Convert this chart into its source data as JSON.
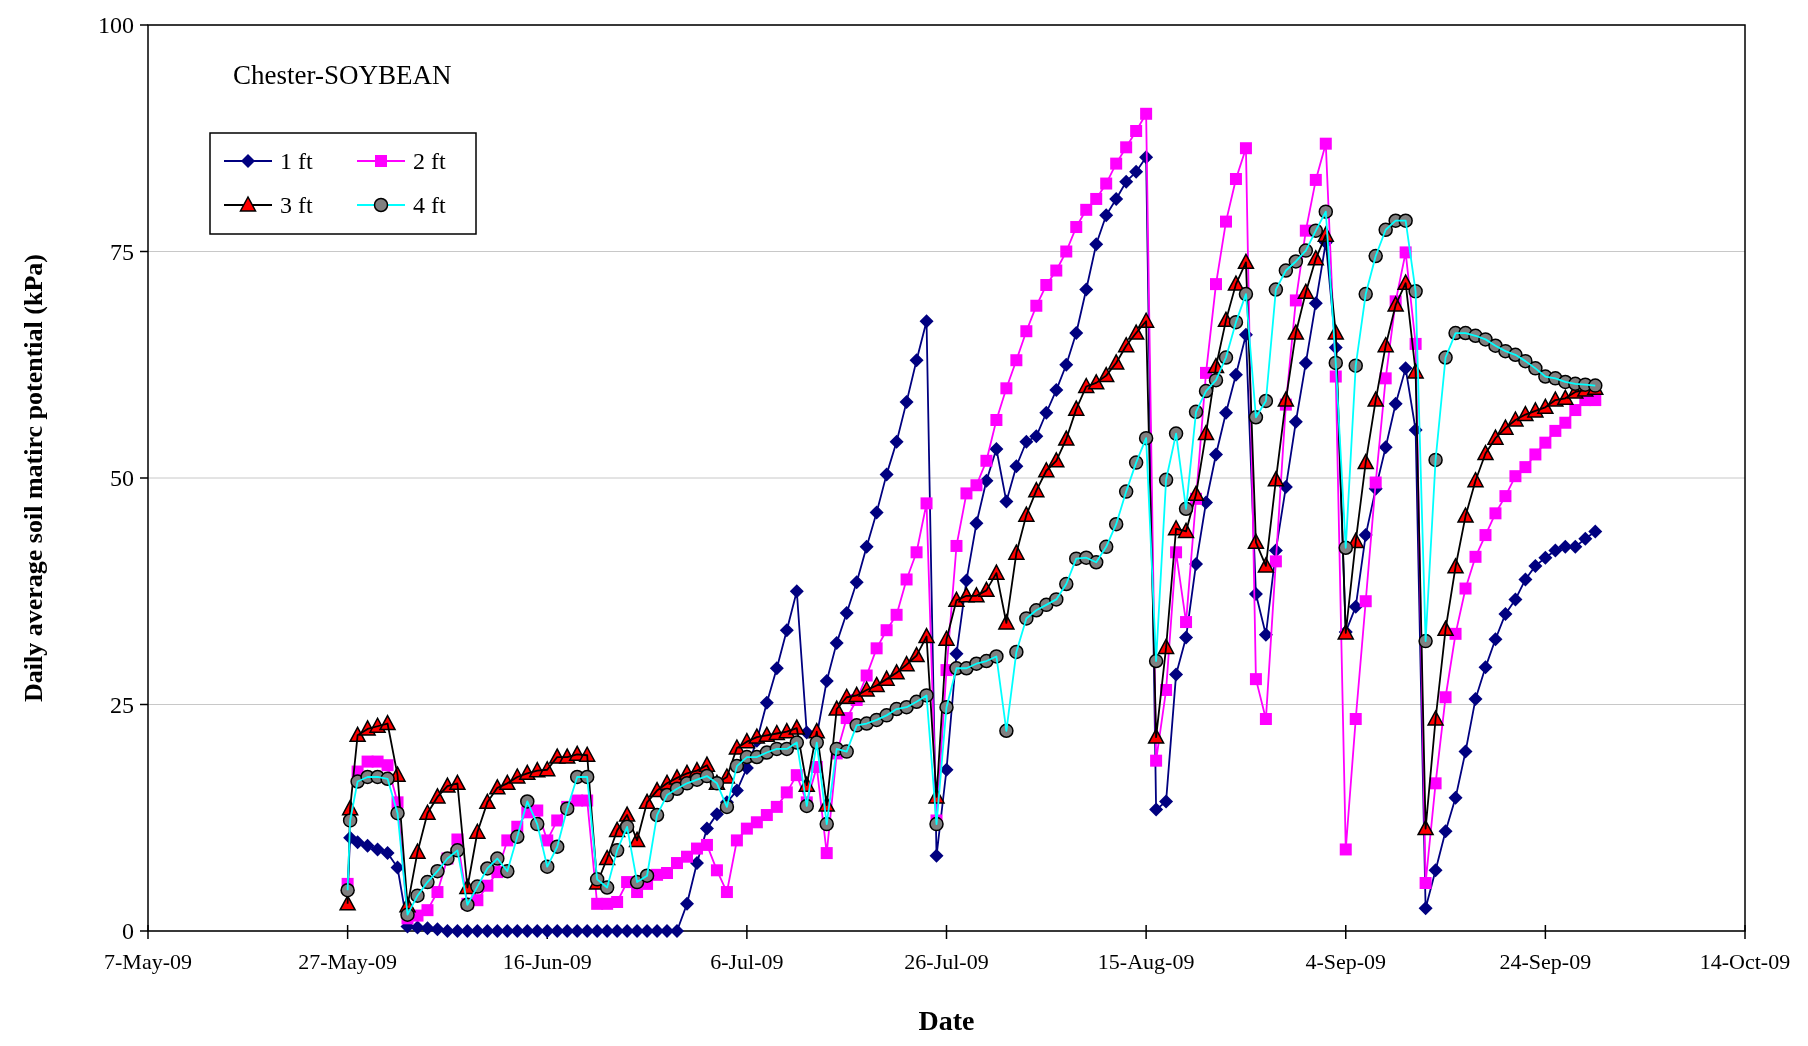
{
  "chart_data": {
    "type": "line",
    "xlabel": "Date",
    "ylabel": "Daily average soil matirc potential (kPa)",
    "annotations": [
      "Chester-SOYBEAN"
    ],
    "x": [
      "2009-05-27T00:00",
      "2009-05-27T06:00",
      "2009-05-28",
      "2009-05-29",
      "2009-05-30",
      "2009-05-31",
      "2009-06-01",
      "2009-06-02",
      "2009-06-03",
      "2009-06-04",
      "2009-06-05",
      "2009-06-06",
      "2009-06-07",
      "2009-06-08",
      "2009-06-09",
      "2009-06-10",
      "2009-06-11",
      "2009-06-12",
      "2009-06-13",
      "2009-06-14",
      "2009-06-15",
      "2009-06-16",
      "2009-06-17",
      "2009-06-18",
      "2009-06-19",
      "2009-06-20",
      "2009-06-21",
      "2009-06-22",
      "2009-06-23",
      "2009-06-24",
      "2009-06-25",
      "2009-06-26",
      "2009-06-27",
      "2009-06-28",
      "2009-06-29",
      "2009-06-30",
      "2009-07-01",
      "2009-07-02",
      "2009-07-03",
      "2009-07-04",
      "2009-07-05",
      "2009-07-06",
      "2009-07-07",
      "2009-07-08",
      "2009-07-09",
      "2009-07-10",
      "2009-07-11",
      "2009-07-12",
      "2009-07-13",
      "2009-07-14",
      "2009-07-15",
      "2009-07-16",
      "2009-07-17",
      "2009-07-18",
      "2009-07-19",
      "2009-07-20",
      "2009-07-21",
      "2009-07-22",
      "2009-07-23",
      "2009-07-24",
      "2009-07-25",
      "2009-07-26",
      "2009-07-27",
      "2009-07-28",
      "2009-07-29",
      "2009-07-30",
      "2009-07-31",
      "2009-08-01",
      "2009-08-02",
      "2009-08-03",
      "2009-08-04",
      "2009-08-05",
      "2009-08-06",
      "2009-08-07",
      "2009-08-08",
      "2009-08-09",
      "2009-08-10",
      "2009-08-11",
      "2009-08-12",
      "2009-08-13",
      "2009-08-14",
      "2009-08-15",
      "2009-08-16",
      "2009-08-17",
      "2009-08-18",
      "2009-08-19",
      "2009-08-20",
      "2009-08-21",
      "2009-08-22",
      "2009-08-23",
      "2009-08-24",
      "2009-08-25",
      "2009-08-26",
      "2009-08-27",
      "2009-08-28",
      "2009-08-29",
      "2009-08-30",
      "2009-08-31",
      "2009-09-01",
      "2009-09-02",
      "2009-09-03",
      "2009-09-04",
      "2009-09-05",
      "2009-09-06",
      "2009-09-07",
      "2009-09-08",
      "2009-09-09",
      "2009-09-10",
      "2009-09-11",
      "2009-09-12",
      "2009-09-13",
      "2009-09-14",
      "2009-09-15",
      "2009-09-16",
      "2009-09-17",
      "2009-09-18",
      "2009-09-19",
      "2009-09-20",
      "2009-09-21",
      "2009-09-22",
      "2009-09-23",
      "2009-09-24",
      "2009-09-25",
      "2009-09-26",
      "2009-09-27",
      "2009-09-28",
      "2009-09-29"
    ],
    "series": [
      {
        "name": "1 ft",
        "color": "#000080",
        "marker": "diamond",
        "values": [
          4.5,
          10.3,
          9.8,
          9.4,
          9.0,
          8.6,
          7.0,
          0.5,
          0.4,
          0.3,
          0.2,
          0,
          0,
          0,
          0,
          0,
          0,
          0,
          0,
          0,
          0,
          0,
          0,
          0,
          0,
          0,
          0,
          0,
          0,
          0,
          0,
          0,
          0,
          0,
          0,
          3.0,
          7.5,
          11.3,
          12.9,
          14.2,
          15.5,
          18.0,
          21.0,
          25.2,
          29.0,
          33.2,
          37.5,
          21.9,
          21.5,
          27.6,
          31.8,
          35.1,
          38.5,
          42.4,
          46.2,
          50.4,
          54.0,
          58.4,
          63.0,
          67.3,
          8.3,
          17.8,
          30.6,
          38.7,
          45.0,
          49.7,
          53.2,
          47.4,
          51.3,
          54.0,
          54.6,
          57.2,
          59.7,
          62.5,
          66.0,
          70.8,
          75.8,
          79.0,
          80.8,
          82.7,
          83.8,
          85.4,
          13.4,
          14.3,
          28.3,
          32.4,
          40.5,
          47.3,
          52.6,
          57.2,
          61.4,
          65.8,
          37.2,
          32.7,
          42.0,
          49.0,
          56.2,
          62.7,
          69.3,
          76.0,
          64.4,
          33.0,
          35.8,
          43.7,
          48.8,
          53.4,
          58.2,
          62.1,
          55.3,
          2.5,
          6.7,
          11.0,
          14.7,
          19.8,
          25.6,
          29.1,
          32.2,
          35.0,
          36.6,
          38.8,
          40.3,
          41.2,
          42.0,
          42.4,
          42.4,
          43.3,
          44.1
        ]
      },
      {
        "name": "2 ft",
        "color": "#ff00ff",
        "marker": "square",
        "values": [
          5.2,
          null,
          17.6,
          18.7,
          18.7,
          18.3,
          14.2,
          1.4,
          1.7,
          2.3,
          4.3,
          8.0,
          10.1,
          3.0,
          3.4,
          5.0,
          6.5,
          10.0,
          11.5,
          13.1,
          13.3,
          10.0,
          12.2,
          13.7,
          14.4,
          14.4,
          3.0,
          3.0,
          3.2,
          5.4,
          4.3,
          5.2,
          6.2,
          6.4,
          7.5,
          8.2,
          9.1,
          9.5,
          6.7,
          4.3,
          10.0,
          11.3,
          12.0,
          12.8,
          13.7,
          15.3,
          17.2,
          14.2,
          18.1,
          8.6,
          19.6,
          23.5,
          25.5,
          28.2,
          31.2,
          33.2,
          34.9,
          38.8,
          41.8,
          47.2,
          12.2,
          28.8,
          42.5,
          48.3,
          49.2,
          51.9,
          56.4,
          59.9,
          63.0,
          66.2,
          69.0,
          71.3,
          72.9,
          75.0,
          77.7,
          79.6,
          80.8,
          82.5,
          84.7,
          86.5,
          88.3,
          90.2,
          18.8,
          26.6,
          41.8,
          34.1,
          47.7,
          61.6,
          71.4,
          78.3,
          83.0,
          86.4,
          27.8,
          23.4,
          40.8,
          58.1,
          69.6,
          77.3,
          82.9,
          86.9,
          61.2,
          9.0,
          23.4,
          36.4,
          49.5,
          61.0,
          69.5,
          74.9,
          64.8,
          5.3,
          16.3,
          25.8,
          32.8,
          37.8,
          41.3,
          43.7,
          46.1,
          48.0,
          50.2,
          51.2,
          52.6,
          53.9,
          55.2,
          56.1,
          57.5,
          58.6,
          58.6
        ]
      },
      {
        "name": "3 ft",
        "color": "#000000",
        "marker": "triangle",
        "colors": [
          "#ff0000",
          "#ff0000",
          "#ff0000",
          "#ff0000",
          "#ff0000",
          "#ff0000",
          "#ff0000",
          "#ff0000",
          "#ff0000",
          "#ff0000",
          "#ff0000",
          "#ff0000",
          "#ff0000",
          "#ff0000",
          "#ff0000",
          "#ff0000",
          "#ff0000",
          "#ff0000",
          "#ff0000",
          "#ff0000",
          "#ff0000",
          "#ff0000",
          "#ff0000",
          "#ff0000",
          "#ff0000",
          "#ff0000",
          "#ff0000",
          "#ff0000",
          "#ff0000",
          "#ff0000",
          "#ff0000",
          "#ff0000",
          "#ff0000",
          "#ff0000",
          "#ff0000",
          "#ff0000",
          "#ff0000",
          "#ff0000",
          "#ff0000",
          "#ff0000",
          "#ff0000",
          "#ff0000",
          "#ff0000",
          "#ff0000",
          "#ff0000",
          "#ff0000",
          "#ff0000",
          "#ff0000",
          "#ff0000",
          "#ff0000",
          "#ff0000",
          "#ff0000",
          "#ff0000",
          "#ff0000",
          "#ff0000",
          "#ff0000",
          "#ff0000",
          "#ff0000",
          "#ff0000",
          "#ff0000",
          "#ff0000",
          "#ff0000",
          "#ff0000",
          "#ff0000",
          "#ff0000",
          "#ff0000",
          "#ff0000",
          "#ff0000",
          "#ff0000",
          "#ff0000",
          "#ff0000",
          "#ff0000",
          "#ff0000",
          "#ff0000",
          "#ff0000",
          "#ff0000",
          "#ff0000",
          "#ff0000",
          "#ff0000",
          "#ff0000",
          "#ff0000",
          "#ff0000",
          "#ff0000",
          "#ff0000",
          "#ff0000",
          "#ff0000",
          "#ff0000",
          "#ff0000",
          "#ff0000",
          "#ff0000",
          "#ff0000",
          "#ff0000",
          "#ff0000",
          "#ff0000",
          "#ff0000",
          "#ff0000",
          "#ff0000",
          "#ff0000",
          "#ff0000",
          "#ff0000",
          "#ff0000",
          "#ff0000",
          "#ff0000",
          "#ff0000",
          "#ff0000",
          "#ff0000",
          "#ff0000",
          "#ff0000",
          "#ff0000",
          "#ff0000",
          "#ff0000",
          "#ff0000",
          "#ff0000",
          "#ff0000",
          "#ff0000",
          "#ff0000",
          "#ff0000",
          "#ff0000",
          "#ff0000",
          "#ff0000",
          "#ff0000",
          "#ff0000",
          "#ff0000",
          "#ff0000",
          "#ff0000",
          "#ff0000",
          "#ff0000"
        ],
        "values": [
          3.0,
          13.5,
          21.6,
          22.3,
          22.6,
          22.9,
          17.2,
          2.8,
          8.7,
          13.0,
          14.8,
          16.0,
          16.3,
          4.8,
          10.9,
          14.2,
          15.8,
          16.3,
          17.0,
          17.4,
          17.7,
          17.8,
          19.2,
          19.2,
          19.5,
          19.4,
          5.3,
          8.0,
          11.1,
          12.8,
          10.0,
          14.2,
          15.5,
          16.3,
          16.9,
          17.4,
          17.7,
          18.3,
          16.3,
          17.0,
          20.2,
          20.9,
          21.4,
          21.6,
          21.8,
          22.0,
          22.4,
          16.1,
          22.0,
          13.9,
          24.5,
          25.8,
          26.0,
          26.6,
          27.1,
          27.8,
          28.5,
          29.4,
          30.4,
          32.5,
          14.8,
          32.2,
          36.5,
          37.0,
          37.0,
          37.6,
          39.5,
          34.0,
          41.7,
          45.9,
          48.6,
          50.8,
          51.9,
          54.3,
          57.6,
          60.1,
          60.5,
          61.3,
          62.7,
          64.6,
          66.0,
          67.3,
          21.4,
          31.3,
          44.4,
          44.1,
          48.2,
          54.9,
          62.3,
          67.4,
          71.4,
          73.8,
          42.9,
          40.3,
          49.8,
          58.6,
          66.0,
          70.5,
          74.2,
          76.8,
          66.0,
          32.9,
          43.0,
          51.7,
          58.6,
          64.6,
          69.1,
          71.5,
          61.7,
          11.3,
          23.4,
          33.3,
          40.2,
          45.8,
          49.7,
          52.7,
          54.4,
          55.5,
          56.4,
          57.0,
          57.4,
          57.8,
          58.6,
          58.8,
          59.5,
          59.7,
          59.9
        ]
      },
      {
        "name": "4 ft",
        "color": "#00ffff",
        "marker": "circle",
        "colors": [
          "#808080",
          "#808080",
          "#808080",
          "#808080",
          "#808080",
          "#808080",
          "#808080",
          "#808080",
          "#808080",
          "#808080",
          "#808080",
          "#808080",
          "#808080",
          "#808080",
          "#808080",
          "#808080",
          "#808080",
          "#808080",
          "#808080",
          "#808080",
          "#808080",
          "#808080",
          "#808080",
          "#808080",
          "#808080",
          "#808080",
          "#808080",
          "#808080",
          "#808080",
          "#808080",
          "#808080",
          "#808080",
          "#808080",
          "#808080",
          "#808080",
          "#808080",
          "#808080",
          "#808080",
          "#808080",
          "#808080",
          "#808080",
          "#808080",
          "#808080",
          "#808080",
          "#808080",
          "#808080",
          "#808080",
          "#808080",
          "#808080",
          "#808080",
          "#808080",
          "#808080",
          "#808080",
          "#808080",
          "#808080",
          "#808080",
          "#808080",
          "#808080",
          "#808080",
          "#808080",
          "#808080",
          "#808080",
          "#808080",
          "#808080",
          "#808080",
          "#808080",
          "#808080",
          "#808080",
          "#808080",
          "#808080",
          "#808080",
          "#808080",
          "#808080",
          "#808080",
          "#808080",
          "#808080",
          "#808080",
          "#808080",
          "#808080",
          "#808080",
          "#808080",
          "#808080",
          "#808080",
          "#808080",
          "#808080",
          "#808080",
          "#808080",
          "#808080",
          "#808080",
          "#808080",
          "#808080",
          "#808080",
          "#808080",
          "#808080",
          "#808080",
          "#808080",
          "#808080",
          "#808080",
          "#808080",
          "#808080",
          "#808080",
          "#808080",
          "#808080",
          "#808080",
          "#808080",
          "#808080",
          "#808080",
          "#808080",
          "#808080",
          "#808080",
          "#808080",
          "#808080",
          "#808080",
          "#808080",
          "#808080",
          "#808080",
          "#808080",
          "#808080",
          "#808080",
          "#808080",
          "#808080",
          "#808080",
          "#808080",
          "#808080",
          "#808080",
          "#808080",
          "#808080"
        ],
        "values": [
          4.5,
          12.2,
          16.5,
          17.0,
          17.0,
          16.8,
          13.0,
          1.8,
          3.9,
          5.4,
          6.6,
          8.0,
          8.9,
          2.9,
          4.9,
          6.9,
          8.0,
          6.6,
          10.4,
          14.3,
          11.8,
          7.1,
          9.3,
          13.5,
          17.0,
          17.0,
          5.7,
          4.8,
          8.9,
          11.5,
          5.4,
          6.1,
          12.8,
          15.0,
          15.7,
          16.3,
          16.7,
          17.1,
          16.3,
          13.7,
          18.2,
          19.2,
          19.2,
          19.7,
          20.1,
          20.1,
          20.8,
          13.8,
          20.8,
          11.8,
          20.1,
          19.8,
          22.7,
          22.9,
          23.3,
          23.8,
          24.5,
          24.7,
          25.3,
          26.0,
          11.8,
          24.7,
          29.0,
          29.0,
          29.5,
          29.8,
          30.3,
          22.1,
          30.8,
          34.5,
          35.4,
          36.0,
          36.6,
          38.3,
          41.1,
          41.2,
          40.7,
          42.4,
          44.9,
          48.5,
          51.7,
          54.4,
          29.8,
          49.8,
          54.9,
          46.6,
          57.3,
          59.6,
          60.8,
          63.3,
          67.2,
          70.3,
          56.7,
          58.5,
          70.8,
          72.9,
          73.9,
          75.1,
          77.3,
          79.4,
          62.7,
          42.3,
          62.4,
          70.3,
          74.5,
          77.4,
          78.4,
          78.4,
          70.6,
          32.0,
          52.0,
          63.3,
          66.0,
          66.0,
          65.7,
          65.3,
          64.6,
          64.0,
          63.6,
          62.9,
          62.1,
          61.2,
          61.0,
          60.6,
          60.4,
          60.3,
          60.2
        ]
      }
    ],
    "xlim": [
      "2009-05-07",
      "2009-10-14"
    ],
    "xticks": [
      {
        "value": "2009-05-07",
        "label": "7-May-09"
      },
      {
        "value": "2009-05-27",
        "label": "27-May-09"
      },
      {
        "value": "2009-06-16",
        "label": "16-Jun-09"
      },
      {
        "value": "2009-07-06",
        "label": "6-Jul-09"
      },
      {
        "value": "2009-07-26",
        "label": "26-Jul-09"
      },
      {
        "value": "2009-08-15",
        "label": "15-Aug-09"
      },
      {
        "value": "2009-09-04",
        "label": "4-Sep-09"
      },
      {
        "value": "2009-09-24",
        "label": "24-Sep-09"
      },
      {
        "value": "2009-10-14",
        "label": "14-Oct-09"
      }
    ],
    "ylim": [
      0,
      100
    ],
    "yticks": [
      0,
      25,
      50,
      75,
      100
    ],
    "grid": "y",
    "legend": "top left",
    "line_style": "solid"
  }
}
